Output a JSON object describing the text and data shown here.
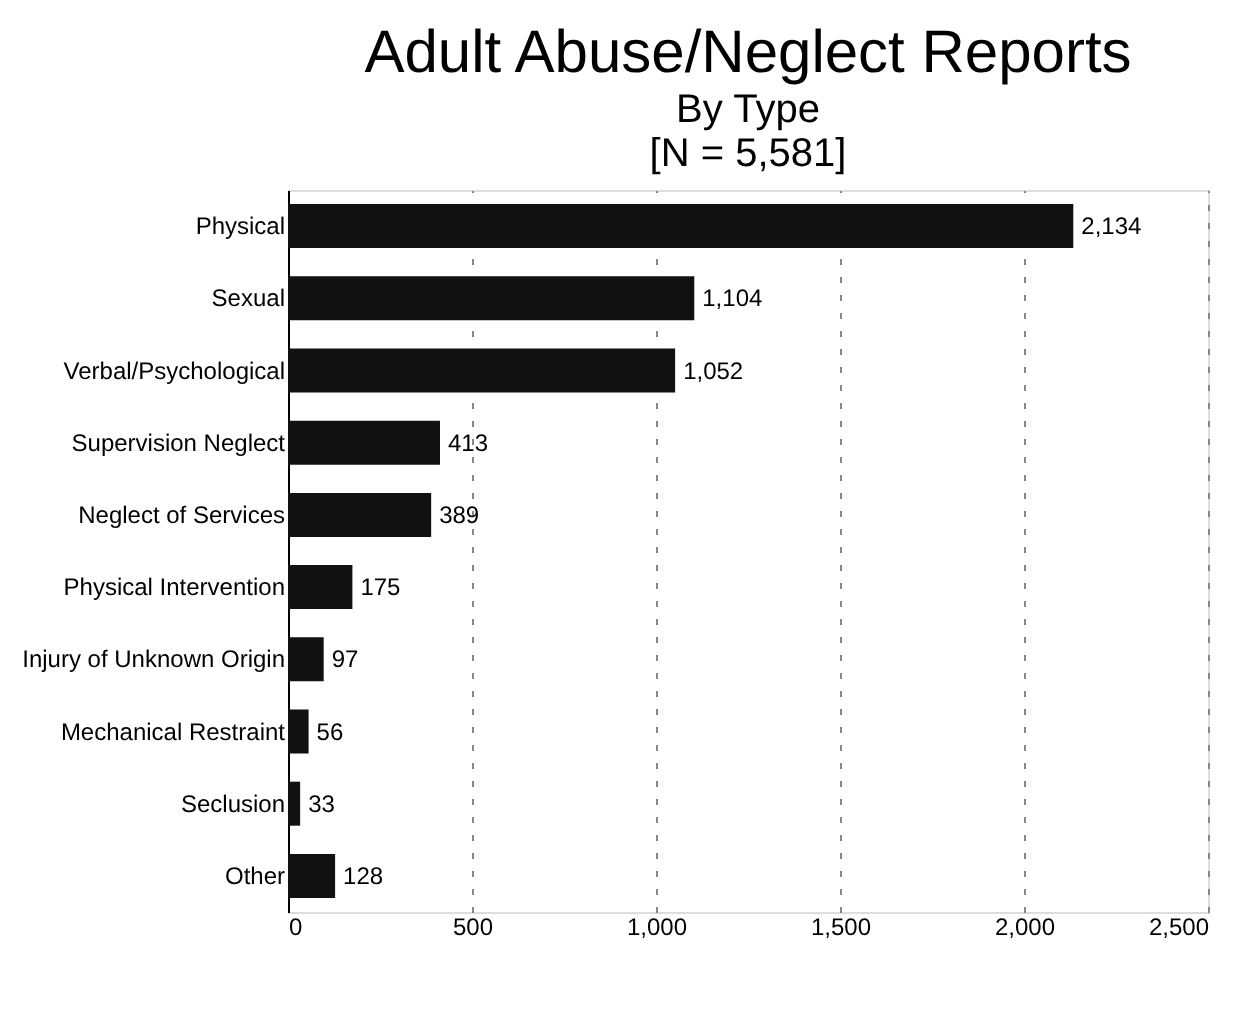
{
  "chart_data": {
    "type": "bar",
    "orientation": "horizontal",
    "title": "Adult Abuse/Neglect Reports",
    "subtitle": "By Type",
    "annotations": [
      "[N = 5,581]"
    ],
    "categories": [
      "Physical",
      "Sexual",
      "Verbal/Psychological",
      "Supervision Neglect",
      "Neglect of Services",
      "Physical Intervention",
      "Injury of Unknown Origin",
      "Mechanical Restraint",
      "Seclusion",
      "Other"
    ],
    "values": [
      2134,
      1104,
      1052,
      413,
      389,
      175,
      97,
      56,
      33,
      128
    ],
    "value_labels": [
      "2,134",
      "1,104",
      "1,052",
      "413",
      "389",
      "175",
      "97",
      "56",
      "33",
      "128"
    ],
    "color": "#111111",
    "xlim": [
      0,
      2500
    ],
    "xticks": [
      0,
      500,
      {
        "value": 1000,
        "label": "1,000"
      },
      {
        "value": 1500,
        "label": "1,500"
      },
      {
        "value": 2000,
        "label": "2,000"
      },
      {
        "value": 2500,
        "label": "2,500"
      }
    ],
    "grid": "x"
  }
}
